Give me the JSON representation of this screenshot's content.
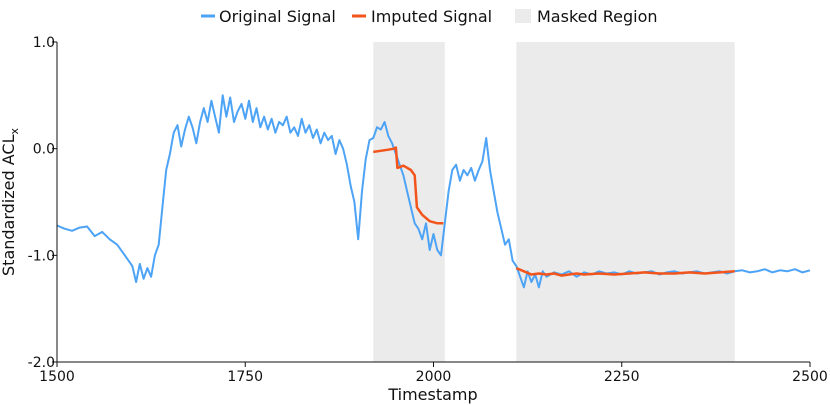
{
  "chart_data": {
    "type": "line",
    "xlabel": "Timestamp",
    "ylabel": "Standardized ACL",
    "ylabel_subscript": "x",
    "xlim": [
      1500,
      2500
    ],
    "ylim": [
      -2.0,
      1.0
    ],
    "x_ticks": [
      1500,
      1750,
      2000,
      2250,
      2500
    ],
    "y_ticks": [
      -2.0,
      -1.0,
      0.0,
      1.0
    ],
    "grid": false,
    "legend_position": "top-center",
    "legend": [
      {
        "label": "Original Signal",
        "kind": "line",
        "color": "#4da3f5"
      },
      {
        "label": "Imputed Signal",
        "kind": "line",
        "color": "#f2541b"
      },
      {
        "label": "Masked Region",
        "kind": "patch",
        "color": "#ebebeb"
      }
    ],
    "masked_regions": [
      [
        1920,
        2015
      ],
      [
        2110,
        2400
      ]
    ],
    "series": [
      {
        "name": "Original Signal",
        "color": "#4da3f5",
        "points": [
          [
            1500,
            -0.72
          ],
          [
            1510,
            -0.75
          ],
          [
            1520,
            -0.77
          ],
          [
            1530,
            -0.74
          ],
          [
            1540,
            -0.73
          ],
          [
            1550,
            -0.82
          ],
          [
            1560,
            -0.78
          ],
          [
            1570,
            -0.85
          ],
          [
            1580,
            -0.9
          ],
          [
            1590,
            -1.0
          ],
          [
            1600,
            -1.1
          ],
          [
            1605,
            -1.25
          ],
          [
            1610,
            -1.08
          ],
          [
            1615,
            -1.22
          ],
          [
            1620,
            -1.12
          ],
          [
            1625,
            -1.2
          ],
          [
            1630,
            -1.0
          ],
          [
            1635,
            -0.9
          ],
          [
            1640,
            -0.55
          ],
          [
            1645,
            -0.2
          ],
          [
            1650,
            -0.05
          ],
          [
            1655,
            0.15
          ],
          [
            1660,
            0.22
          ],
          [
            1665,
            0.02
          ],
          [
            1670,
            0.18
          ],
          [
            1675,
            0.3
          ],
          [
            1680,
            0.2
          ],
          [
            1685,
            0.05
          ],
          [
            1690,
            0.25
          ],
          [
            1695,
            0.38
          ],
          [
            1700,
            0.25
          ],
          [
            1705,
            0.45
          ],
          [
            1710,
            0.3
          ],
          [
            1715,
            0.15
          ],
          [
            1720,
            0.5
          ],
          [
            1725,
            0.3
          ],
          [
            1730,
            0.48
          ],
          [
            1735,
            0.25
          ],
          [
            1740,
            0.35
          ],
          [
            1745,
            0.42
          ],
          [
            1750,
            0.28
          ],
          [
            1755,
            0.45
          ],
          [
            1760,
            0.25
          ],
          [
            1765,
            0.38
          ],
          [
            1770,
            0.2
          ],
          [
            1775,
            0.3
          ],
          [
            1780,
            0.18
          ],
          [
            1785,
            0.28
          ],
          [
            1790,
            0.15
          ],
          [
            1795,
            0.25
          ],
          [
            1800,
            0.22
          ],
          [
            1805,
            0.3
          ],
          [
            1810,
            0.15
          ],
          [
            1815,
            0.2
          ],
          [
            1820,
            0.12
          ],
          [
            1825,
            0.28
          ],
          [
            1830,
            0.15
          ],
          [
            1835,
            0.22
          ],
          [
            1840,
            0.1
          ],
          [
            1845,
            0.18
          ],
          [
            1850,
            0.05
          ],
          [
            1855,
            0.15
          ],
          [
            1860,
            0.08
          ],
          [
            1865,
            0.12
          ],
          [
            1870,
            -0.05
          ],
          [
            1875,
            0.08
          ],
          [
            1880,
            0.0
          ],
          [
            1885,
            -0.15
          ],
          [
            1890,
            -0.35
          ],
          [
            1895,
            -0.5
          ],
          [
            1900,
            -0.85
          ],
          [
            1905,
            -0.4
          ],
          [
            1910,
            -0.1
          ],
          [
            1915,
            0.08
          ],
          [
            1920,
            0.1
          ],
          [
            1925,
            0.2
          ],
          [
            1930,
            0.18
          ],
          [
            1935,
            0.25
          ],
          [
            1940,
            0.12
          ],
          [
            1945,
            0.05
          ],
          [
            1950,
            -0.05
          ],
          [
            1955,
            -0.15
          ],
          [
            1960,
            -0.25
          ],
          [
            1965,
            -0.4
          ],
          [
            1970,
            -0.55
          ],
          [
            1975,
            -0.7
          ],
          [
            1980,
            -0.75
          ],
          [
            1985,
            -0.85
          ],
          [
            1990,
            -0.7
          ],
          [
            1995,
            -0.95
          ],
          [
            2000,
            -0.8
          ],
          [
            2005,
            -0.95
          ],
          [
            2010,
            -1.0
          ],
          [
            2015,
            -0.7
          ],
          [
            2020,
            -0.4
          ],
          [
            2025,
            -0.2
          ],
          [
            2030,
            -0.15
          ],
          [
            2035,
            -0.3
          ],
          [
            2040,
            -0.2
          ],
          [
            2045,
            -0.25
          ],
          [
            2050,
            -0.18
          ],
          [
            2055,
            -0.3
          ],
          [
            2060,
            -0.2
          ],
          [
            2065,
            -0.12
          ],
          [
            2070,
            0.1
          ],
          [
            2075,
            -0.2
          ],
          [
            2080,
            -0.4
          ],
          [
            2085,
            -0.6
          ],
          [
            2090,
            -0.75
          ],
          [
            2095,
            -0.9
          ],
          [
            2100,
            -0.85
          ],
          [
            2105,
            -1.05
          ],
          [
            2110,
            -1.1
          ],
          [
            2115,
            -1.2
          ],
          [
            2120,
            -1.3
          ],
          [
            2125,
            -1.15
          ],
          [
            2130,
            -1.25
          ],
          [
            2135,
            -1.18
          ],
          [
            2140,
            -1.3
          ],
          [
            2145,
            -1.15
          ],
          [
            2150,
            -1.2
          ],
          [
            2160,
            -1.16
          ],
          [
            2170,
            -1.18
          ],
          [
            2180,
            -1.15
          ],
          [
            2190,
            -1.2
          ],
          [
            2200,
            -1.16
          ],
          [
            2210,
            -1.18
          ],
          [
            2220,
            -1.15
          ],
          [
            2230,
            -1.17
          ],
          [
            2240,
            -1.16
          ],
          [
            2250,
            -1.18
          ],
          [
            2260,
            -1.15
          ],
          [
            2270,
            -1.17
          ],
          [
            2280,
            -1.16
          ],
          [
            2290,
            -1.15
          ],
          [
            2300,
            -1.18
          ],
          [
            2310,
            -1.16
          ],
          [
            2320,
            -1.15
          ],
          [
            2330,
            -1.17
          ],
          [
            2340,
            -1.16
          ],
          [
            2350,
            -1.15
          ],
          [
            2360,
            -1.17
          ],
          [
            2370,
            -1.16
          ],
          [
            2380,
            -1.15
          ],
          [
            2390,
            -1.17
          ],
          [
            2400,
            -1.15
          ],
          [
            2410,
            -1.14
          ],
          [
            2420,
            -1.16
          ],
          [
            2430,
            -1.15
          ],
          [
            2440,
            -1.13
          ],
          [
            2450,
            -1.16
          ],
          [
            2460,
            -1.14
          ],
          [
            2470,
            -1.15
          ],
          [
            2480,
            -1.13
          ],
          [
            2490,
            -1.16
          ],
          [
            2500,
            -1.14
          ]
        ]
      },
      {
        "name": "Imputed Signal",
        "color": "#f2541b",
        "points": [
          [
            1920,
            -0.03
          ],
          [
            1930,
            -0.02
          ],
          [
            1940,
            -0.01
          ],
          [
            1947,
            0.0
          ],
          [
            1950,
            0.01
          ],
          [
            1952,
            -0.18
          ],
          [
            1960,
            -0.16
          ],
          [
            1970,
            -0.2
          ],
          [
            1975,
            -0.25
          ],
          [
            1978,
            -0.55
          ],
          [
            1985,
            -0.62
          ],
          [
            1995,
            -0.68
          ],
          [
            2005,
            -0.7
          ],
          [
            2013,
            -0.7
          ],
          [
            2110,
            -1.12
          ],
          [
            2120,
            -1.15
          ],
          [
            2130,
            -1.18
          ],
          [
            2140,
            -1.17
          ],
          [
            2150,
            -1.18
          ],
          [
            2160,
            -1.17
          ],
          [
            2170,
            -1.19
          ],
          [
            2180,
            -1.18
          ],
          [
            2190,
            -1.17
          ],
          [
            2200,
            -1.18
          ],
          [
            2220,
            -1.17
          ],
          [
            2240,
            -1.18
          ],
          [
            2260,
            -1.17
          ],
          [
            2280,
            -1.16
          ],
          [
            2300,
            -1.17
          ],
          [
            2320,
            -1.17
          ],
          [
            2340,
            -1.16
          ],
          [
            2360,
            -1.17
          ],
          [
            2380,
            -1.16
          ],
          [
            2400,
            -1.15
          ]
        ]
      }
    ]
  }
}
